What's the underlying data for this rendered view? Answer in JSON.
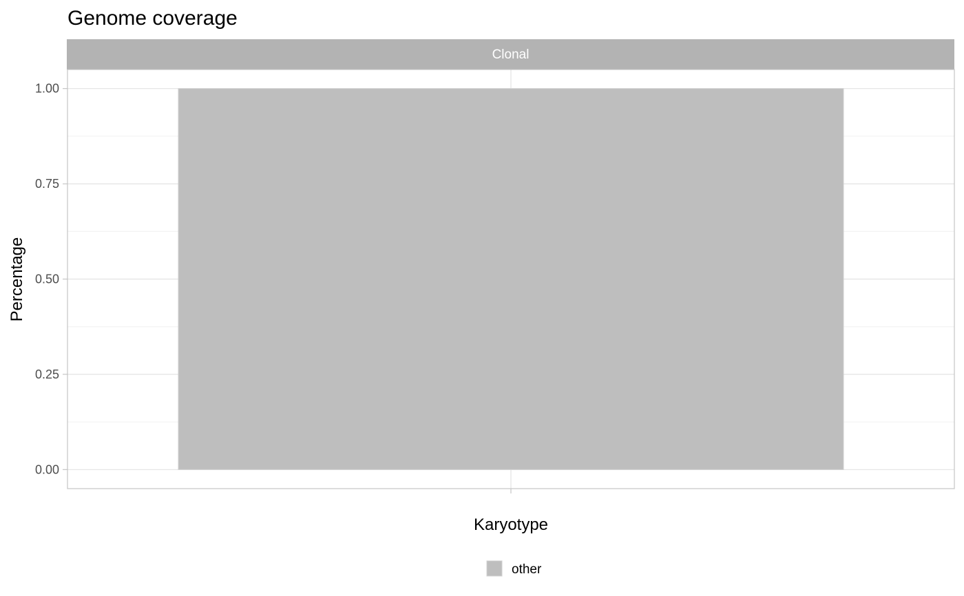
{
  "chart_data": {
    "type": "bar",
    "title": "Genome coverage",
    "facet": "Clonal",
    "xlabel": "Karyotype",
    "ylabel": "Percentage",
    "categories": [
      ""
    ],
    "series": [
      {
        "name": "other",
        "values": [
          1.0
        ],
        "color": "#bebebe"
      }
    ],
    "ylim": [
      -0.05,
      1.05
    ],
    "yticks": [
      0.0,
      0.25,
      0.5,
      0.75,
      1.0
    ],
    "ytick_labels": [
      "0.00",
      "0.25",
      "0.50",
      "0.75",
      "1.00"
    ],
    "grid": true,
    "legend": {
      "position": "bottom",
      "entries": [
        "other"
      ]
    }
  },
  "colors": {
    "strip_bg": "#b3b3b3",
    "strip_text": "#ffffff",
    "grid_major": "#e3e3e3",
    "grid_minor": "#f0f0f0",
    "panel_border": "#c4c4c4",
    "axis_text": "#4d4d4d",
    "title_text": "#000000",
    "bar_outline": "#d0d0d0"
  }
}
